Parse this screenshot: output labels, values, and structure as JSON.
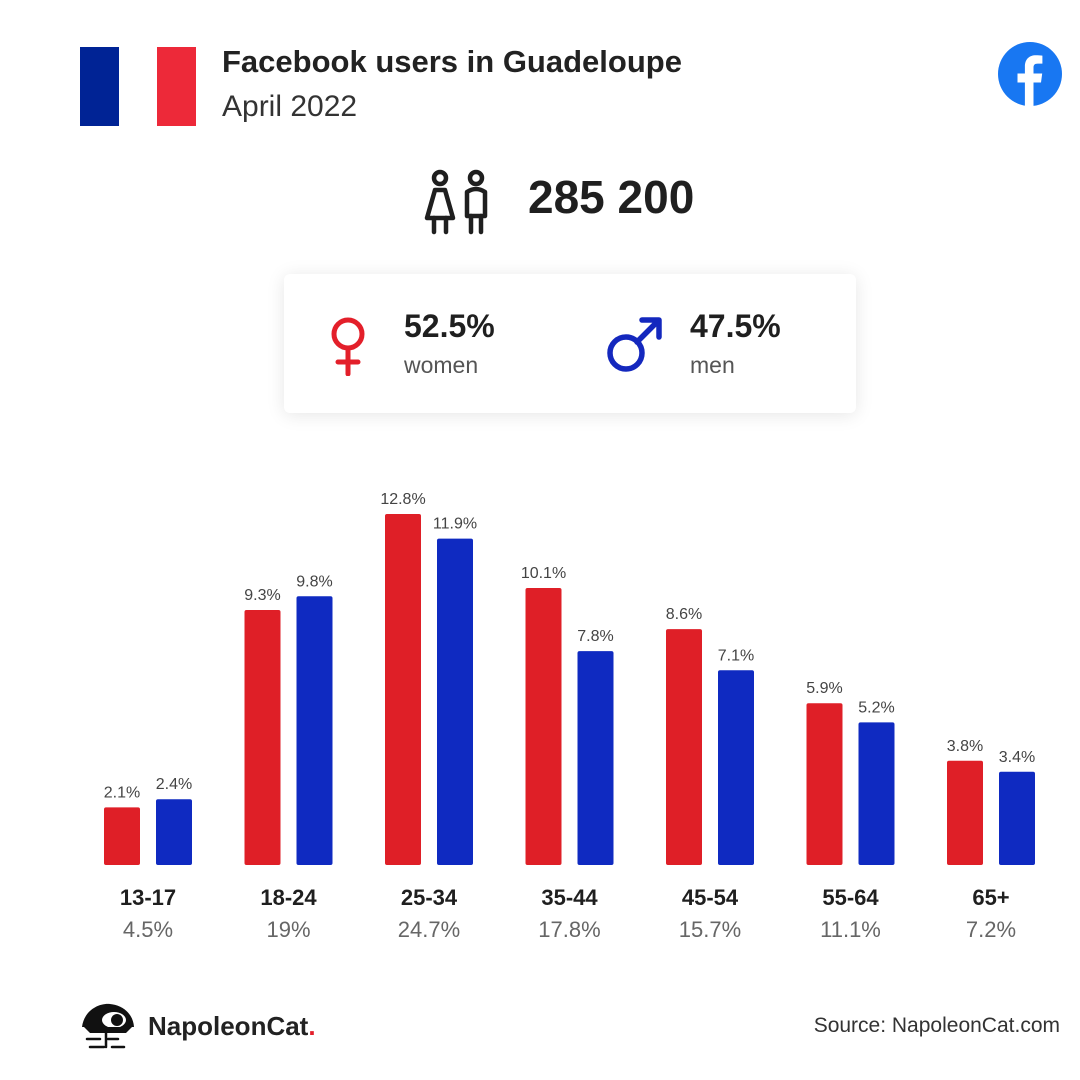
{
  "header": {
    "title": "Facebook users in Guadeloupe",
    "subtitle": "April 2022",
    "flag_colors": [
      "#002395",
      "#ffffff",
      "#ed2939"
    ],
    "logo_icon": "facebook-icon",
    "logo_color": "#1877f2"
  },
  "summary": {
    "total_users": "285 200",
    "icon": "users-icon"
  },
  "gender": {
    "women": {
      "pct": "52.5%",
      "label": "women",
      "icon": "female-icon",
      "color": "#e31f2a"
    },
    "men": {
      "pct": "47.5%",
      "label": "men",
      "icon": "male-icon",
      "color": "#1428be"
    }
  },
  "chart_data": {
    "type": "bar",
    "categories": [
      "13-17",
      "18-24",
      "25-34",
      "35-44",
      "45-54",
      "55-64",
      "65+"
    ],
    "category_totals": [
      "4.5%",
      "19%",
      "24.7%",
      "17.8%",
      "15.7%",
      "11.1%",
      "7.2%"
    ],
    "series": [
      {
        "color": "#df1f27",
        "values": [
          2.1,
          9.3,
          12.8,
          10.1,
          8.6,
          5.9,
          3.8
        ],
        "labels": [
          "2.1%",
          "9.3%",
          "12.8%",
          "10.1%",
          "8.6%",
          "5.9%",
          "3.8%"
        ]
      },
      {
        "color": "#0f2ac1",
        "values": [
          2.4,
          9.8,
          11.9,
          7.8,
          7.1,
          5.2,
          3.4
        ],
        "labels": [
          "2.4%",
          "9.8%",
          "11.9%",
          "7.8%",
          "7.1%",
          "5.2%",
          "3.4%"
        ]
      }
    ],
    "ylim": [
      0,
      12.8
    ],
    "grid": false,
    "legend": "none"
  },
  "footer": {
    "brand": "NapoleonCat",
    "brand_dot": ".",
    "brand_icon": "napoleoncat-logo-icon",
    "source": "Source: NapoleonCat.com"
  }
}
